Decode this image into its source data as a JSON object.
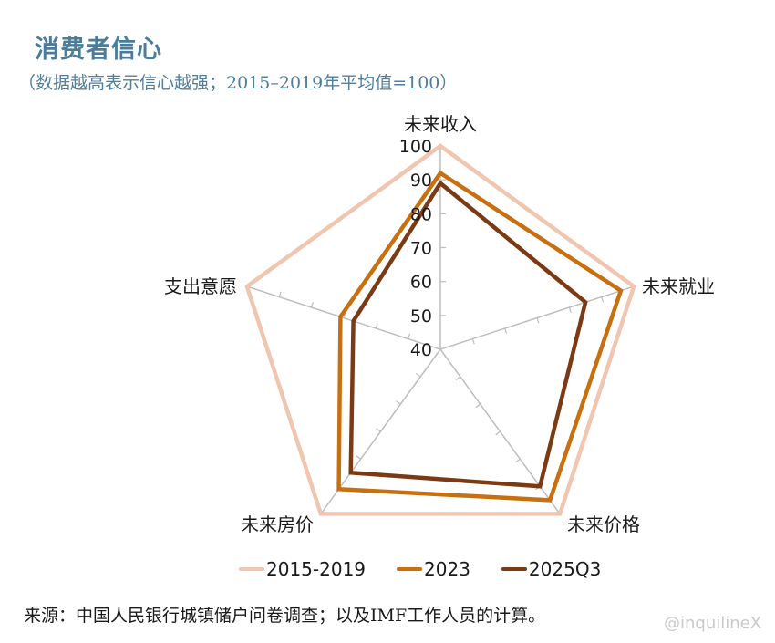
{
  "header": {
    "title": "消费者信心",
    "subtitle": "（数据越高表示信心越强；2015–2019年平均值=100）"
  },
  "chart_data": {
    "type": "radar",
    "title": "消费者信心",
    "subtitle": "（数据越高表示信心越强；2015–2019年平均值=100）",
    "categories": [
      "未来收入",
      "未来就业",
      "未来价格",
      "未来房价",
      "支出意愿"
    ],
    "radial_ticks": [
      40,
      50,
      60,
      70,
      80,
      90,
      100
    ],
    "rlim": [
      40,
      100
    ],
    "series": [
      {
        "name": "2015-2019",
        "color": "#f0c6b0",
        "values": [
          100,
          100,
          100,
          100,
          100
        ]
      },
      {
        "name": "2023",
        "color": "#c8700f",
        "values": [
          92,
          96,
          95,
          91,
          71
        ]
      },
      {
        "name": "2025Q3",
        "color": "#7b3a14",
        "values": [
          89,
          85,
          90,
          85,
          67
        ]
      }
    ],
    "legend_position": "bottom",
    "grid": "spokes with tick marks"
  },
  "legend": {
    "items": [
      {
        "label": "2015-2019",
        "color": "#f0c6b0"
      },
      {
        "label": "2023",
        "color": "#c8700f"
      },
      {
        "label": "2025Q3",
        "color": "#7b3a14"
      }
    ]
  },
  "footer": {
    "source": "来源：中国人民银行城镇储户问卷调查；以及IMF工作人员的计算。",
    "watermark": "@inquilineX"
  }
}
